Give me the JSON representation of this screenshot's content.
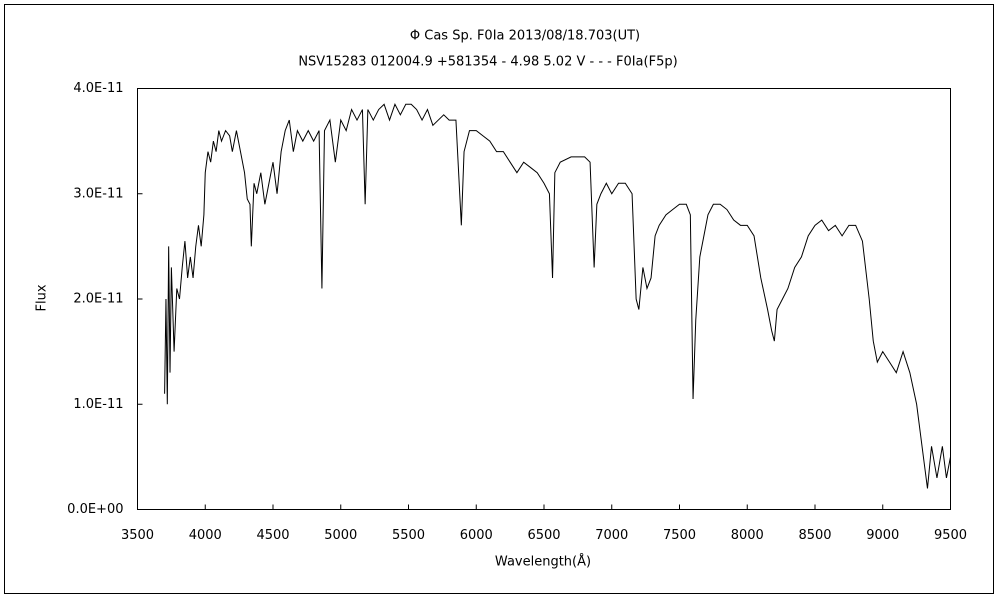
{
  "chart_data": {
    "type": "line",
    "title": "Φ Cas    Sp. F0Ia    2013/08/18.703(UT)",
    "subtitle": "NSV15283 012004.9 +581354 - 4.98 5.02 V - - - F0Ia(F5p)",
    "x_label": "Wavelength(Å)",
    "y_label": "Flux",
    "color": "#000000",
    "xlim": [
      3500,
      9500
    ],
    "xticks": [
      3500,
      4000,
      4500,
      5000,
      5500,
      6000,
      6500,
      7000,
      7500,
      8000,
      8500,
      9000,
      9500
    ],
    "ylim": [
      0,
      4e-11
    ],
    "yticks": [
      {
        "value": 0,
        "label": "0.0E+00"
      },
      {
        "value": 1e-11,
        "label": "1.0E-11"
      },
      {
        "value": 2e-11,
        "label": "2.0E-11"
      },
      {
        "value": 3e-11,
        "label": "3.0E-11"
      },
      {
        "value": 4e-11,
        "label": "4.0E-11"
      }
    ],
    "x": [
      3700,
      3710,
      3720,
      3730,
      3740,
      3750,
      3770,
      3790,
      3810,
      3830,
      3850,
      3870,
      3890,
      3910,
      3930,
      3950,
      3970,
      3990,
      4000,
      4020,
      4040,
      4060,
      4080,
      4100,
      4120,
      4150,
      4180,
      4200,
      4230,
      4260,
      4290,
      4310,
      4330,
      4340,
      4360,
      4380,
      4410,
      4440,
      4470,
      4500,
      4530,
      4560,
      4590,
      4620,
      4650,
      4680,
      4720,
      4760,
      4800,
      4840,
      4861,
      4880,
      4920,
      4960,
      5000,
      5040,
      5080,
      5120,
      5160,
      5180,
      5200,
      5240,
      5280,
      5320,
      5360,
      5400,
      5440,
      5480,
      5520,
      5560,
      5600,
      5640,
      5680,
      5720,
      5760,
      5800,
      5850,
      5890,
      5910,
      5950,
      6000,
      6050,
      6100,
      6150,
      6200,
      6250,
      6300,
      6350,
      6400,
      6450,
      6500,
      6540,
      6563,
      6580,
      6620,
      6700,
      6800,
      6840,
      6870,
      6890,
      6920,
      6960,
      7000,
      7050,
      7100,
      7150,
      7180,
      7200,
      7230,
      7260,
      7290,
      7320,
      7350,
      7400,
      7450,
      7500,
      7550,
      7580,
      7600,
      7620,
      7650,
      7680,
      7710,
      7750,
      7800,
      7850,
      7900,
      7950,
      8000,
      8050,
      8100,
      8150,
      8180,
      8200,
      8220,
      8260,
      8300,
      8350,
      8400,
      8450,
      8500,
      8550,
      8600,
      8650,
      8700,
      8750,
      8800,
      8850,
      8900,
      8930,
      8960,
      9000,
      9050,
      9100,
      9150,
      9200,
      9250,
      9300,
      9330,
      9360,
      9400,
      9440,
      9470,
      9500
    ],
    "values": [
      1.1e-11,
      2e-11,
      1e-11,
      2.5e-11,
      1.3e-11,
      2.3e-11,
      1.5e-11,
      2.1e-11,
      2e-11,
      2.3e-11,
      2.55e-11,
      2.2e-11,
      2.4e-11,
      2.2e-11,
      2.5e-11,
      2.7e-11,
      2.5e-11,
      2.8e-11,
      3.2e-11,
      3.4e-11,
      3.3e-11,
      3.5e-11,
      3.4e-11,
      3.6e-11,
      3.5e-11,
      3.6e-11,
      3.55e-11,
      3.4e-11,
      3.6e-11,
      3.4e-11,
      3.2e-11,
      2.95e-11,
      2.9e-11,
      2.5e-11,
      3.1e-11,
      3e-11,
      3.2e-11,
      2.9e-11,
      3.1e-11,
      3.3e-11,
      3e-11,
      3.4e-11,
      3.6e-11,
      3.7e-11,
      3.4e-11,
      3.6e-11,
      3.5e-11,
      3.6e-11,
      3.5e-11,
      3.6e-11,
      2.1e-11,
      3.6e-11,
      3.7e-11,
      3.3e-11,
      3.7e-11,
      3.6e-11,
      3.8e-11,
      3.7e-11,
      3.8e-11,
      2.9e-11,
      3.8e-11,
      3.7e-11,
      3.8e-11,
      3.85e-11,
      3.7e-11,
      3.85e-11,
      3.75e-11,
      3.85e-11,
      3.85e-11,
      3.8e-11,
      3.7e-11,
      3.8e-11,
      3.65e-11,
      3.7e-11,
      3.75e-11,
      3.7e-11,
      3.7e-11,
      2.7e-11,
      3.4e-11,
      3.6e-11,
      3.6e-11,
      3.55e-11,
      3.5e-11,
      3.4e-11,
      3.4e-11,
      3.3e-11,
      3.2e-11,
      3.3e-11,
      3.25e-11,
      3.2e-11,
      3.1e-11,
      3e-11,
      2.2e-11,
      3.2e-11,
      3.3e-11,
      3.35e-11,
      3.35e-11,
      3.3e-11,
      2.3e-11,
      2.9e-11,
      3e-11,
      3.1e-11,
      3e-11,
      3.1e-11,
      3.1e-11,
      3e-11,
      2e-11,
      1.9e-11,
      2.3e-11,
      2.1e-11,
      2.2e-11,
      2.6e-11,
      2.7e-11,
      2.8e-11,
      2.85e-11,
      2.9e-11,
      2.9e-11,
      2.8e-11,
      1.05e-11,
      1.8e-11,
      2.4e-11,
      2.6e-11,
      2.8e-11,
      2.9e-11,
      2.9e-11,
      2.85e-11,
      2.75e-11,
      2.7e-11,
      2.7e-11,
      2.6e-11,
      2.2e-11,
      1.9e-11,
      1.7e-11,
      1.6e-11,
      1.9e-11,
      2e-11,
      2.1e-11,
      2.3e-11,
      2.4e-11,
      2.6e-11,
      2.7e-11,
      2.75e-11,
      2.65e-11,
      2.7e-11,
      2.6e-11,
      2.7e-11,
      2.7e-11,
      2.55e-11,
      2e-11,
      1.6e-11,
      1.4e-11,
      1.5e-11,
      1.4e-11,
      1.3e-11,
      1.5e-11,
      1.3e-11,
      1e-11,
      5e-12,
      2e-12,
      6e-12,
      3e-12,
      6e-12,
      3e-12,
      5e-12
    ]
  }
}
